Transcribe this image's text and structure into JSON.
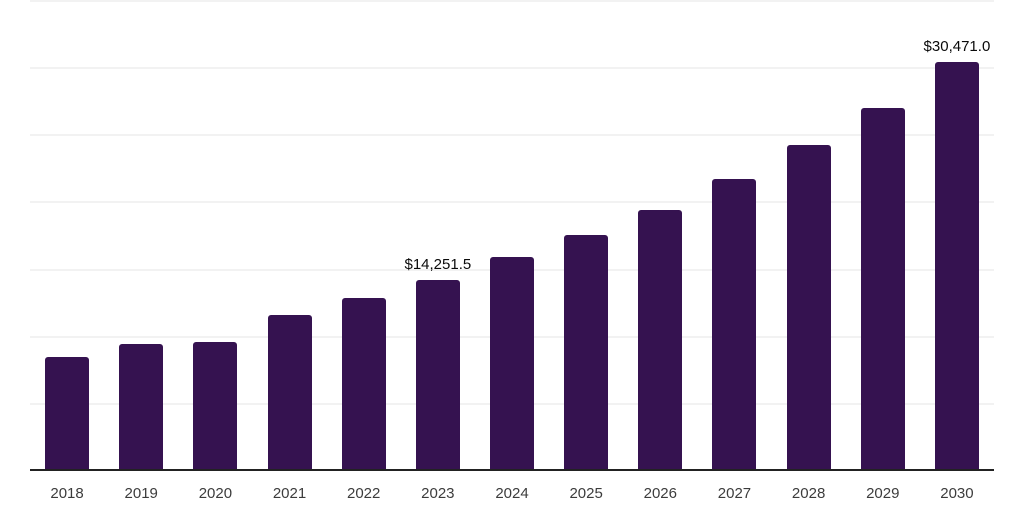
{
  "chart_data": {
    "type": "bar",
    "title": "",
    "xlabel": "",
    "ylabel": "",
    "categories": [
      "2018",
      "2019",
      "2020",
      "2021",
      "2022",
      "2023",
      "2024",
      "2025",
      "2026",
      "2027",
      "2028",
      "2029",
      "2030"
    ],
    "values": [
      8500,
      9480,
      9590,
      11630,
      12890,
      14251.5,
      15900,
      17580,
      19470,
      21780,
      24280,
      27050,
      30471.0
    ],
    "data_labels": [
      "",
      "",
      "",
      "",
      "",
      "$14,251.5",
      "",
      "",
      "",
      "",
      "",
      "",
      "$30,471.0"
    ],
    "ylim": [
      0,
      35000
    ],
    "gridline_step": 5000,
    "grid": true,
    "legend": "none",
    "bar_color": "#351250",
    "gridline_color": "#f2f2f2",
    "axis_color": "#222222",
    "tick_label_color": "#3c3c3c",
    "data_label_color": "#0a0a0a"
  }
}
